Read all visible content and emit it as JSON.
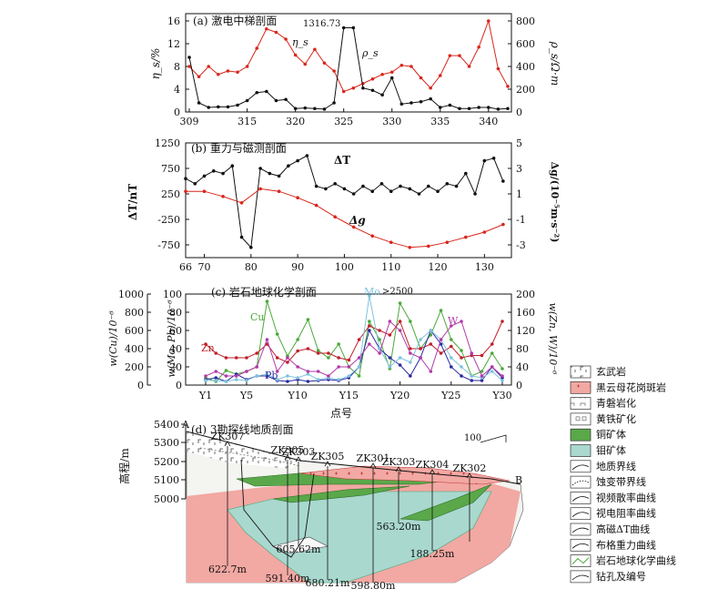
{
  "panel_a": {
    "title": "(a) 激电中梯剖面",
    "ylabel_left": "η_s/%",
    "ylabel_right": "ρ_s/Ω·m",
    "series_eta_label": "η_s",
    "series_rho_label": "ρ_s",
    "peak_label": "1316.73",
    "colors": {
      "eta": "#d9261c",
      "rho": "#111111"
    }
  },
  "panel_b": {
    "title": "(b) 重力与磁测剖面",
    "ylabel_left": "ΔT/nT",
    "ylabel_right": "Δg/(10⁻⁵m·s⁻²)",
    "series_dT_label": "ΔT",
    "series_dg_label": "Δg",
    "colors": {
      "dT": "#111111",
      "dg": "#d9261c"
    }
  },
  "panel_c": {
    "title": "(c) 岩石地球化学剖面",
    "ylabel_far_left": "w(Cu)/10⁻⁶",
    "ylabel_left": "w(Mo, Pb)/10⁻⁶",
    "ylabel_right": "w(Zn, W)/10⁻⁶",
    "annot": ">2500",
    "series_labels": {
      "cu": "Cu",
      "zn": "Zn",
      "pb": "Pb",
      "mo": "Mo",
      "w": "W"
    },
    "colors": {
      "cu": "#4aa83a",
      "zn": "#c0202a",
      "pb": "#2a2aa0",
      "mo": "#7fc3dd",
      "w": "#b23ba8"
    },
    "xlabel": "点号"
  },
  "panel_d": {
    "title": "(d) 3勘探线地质剖面",
    "ylabel": "高程/m",
    "end_a": "A",
    "end_b": "B",
    "scale_label": "100",
    "drillholes": [
      "ZK307",
      "ZK305",
      "ZK303",
      "ZK305",
      "ZK301",
      "ZK303",
      "ZK304",
      "ZK302"
    ],
    "depths": [
      "622.7m",
      "591.40m",
      "605.62m",
      "680.21m",
      "598.80m",
      "563.20m",
      "188.25m"
    ]
  },
  "legend": {
    "items": [
      {
        "label": "玄武岩",
        "kind": "basalt"
      },
      {
        "label": "黑云母花岗斑岩",
        "kind": "porphyry"
      },
      {
        "label": "青磐岩化",
        "kind": "propylitic"
      },
      {
        "label": "黄铁矿化",
        "kind": "pyrite"
      },
      {
        "label": "铜矿体",
        "kind": "cu-ore"
      },
      {
        "label": "钼矿体",
        "kind": "mo-ore"
      },
      {
        "label": "地质界线",
        "kind": "geo-boundary"
      },
      {
        "label": "蚀变带界线",
        "kind": "alteration-boundary"
      },
      {
        "label": "视频散率曲线",
        "kind": "eta-curve"
      },
      {
        "label": "视电阻率曲线",
        "kind": "rho-curve"
      },
      {
        "label": "高磁ΔT曲线",
        "kind": "mag-curve"
      },
      {
        "label": "布格重力曲线",
        "kind": "bouguer-curve"
      },
      {
        "label": "岩石地球化学曲线",
        "kind": "geochem-curve"
      },
      {
        "label": "钻孔及编号",
        "kind": "drillhole"
      }
    ],
    "colors": {
      "porphyry": "#f2a8a3",
      "cu": "#5aa84a",
      "mo": "#a9d8cf"
    }
  },
  "chart_data": [
    {
      "type": "line",
      "title": "(a) 激电中梯剖面",
      "xlim": [
        309,
        342
      ],
      "xticks": [
        309,
        315,
        320,
        325,
        330,
        335,
        340
      ],
      "ylim_left": [
        0,
        16
      ],
      "yticks_left": [
        0,
        4,
        8,
        12,
        16
      ],
      "ylim_right": [
        0,
        800
      ],
      "yticks_right": [
        0,
        200,
        400,
        600,
        800
      ],
      "series": [
        {
          "name": "η_s",
          "axis": "left",
          "x": [
            309,
            310,
            311,
            312,
            313,
            314,
            315,
            316,
            317,
            318,
            319,
            320,
            321,
            322,
            323,
            324,
            325,
            326,
            327,
            328,
            329,
            330,
            331,
            332,
            333,
            334,
            335,
            336,
            337,
            338,
            339,
            340,
            341,
            342
          ],
          "y": [
            8,
            6.2,
            8,
            6.6,
            7.2,
            7,
            8,
            11.2,
            14.6,
            14,
            12.8,
            10,
            8.4,
            11,
            8.6,
            7.2,
            3.6,
            4.2,
            5,
            5.8,
            6.6,
            7,
            8.2,
            8,
            6,
            4.2,
            6.4,
            9.9,
            9.9,
            8,
            11.4,
            16,
            7.6,
            4.5
          ]
        },
        {
          "name": "ρ_s",
          "axis": "right",
          "x": [
            309,
            310,
            311,
            312,
            313,
            314,
            315,
            316,
            317,
            318,
            319,
            320,
            321,
            322,
            323,
            324,
            325,
            326,
            327,
            328,
            329,
            330,
            331,
            332,
            333,
            334,
            335,
            336,
            337,
            338,
            339,
            340,
            341,
            342
          ],
          "y": [
            480,
            80,
            40,
            45,
            45,
            60,
            100,
            170,
            180,
            100,
            110,
            30,
            35,
            30,
            25,
            80,
            740,
            740,
            210,
            190,
            150,
            300,
            70,
            80,
            90,
            115,
            40,
            60,
            30,
            30,
            40,
            40,
            25,
            30
          ]
        }
      ],
      "annotations": [
        "1316.73"
      ]
    },
    {
      "type": "line",
      "title": "(b) 重力与磁测剖面",
      "xlim": [
        66,
        135
      ],
      "xticks": [
        66,
        70,
        80,
        90,
        100,
        110,
        120,
        130
      ],
      "ylim_left": [
        -1000,
        1250
      ],
      "yticks_left": [
        -750,
        -250,
        250,
        750,
        1250
      ],
      "ylim_right": [
        -4,
        5
      ],
      "yticks_right": [
        -3,
        -1,
        1,
        3,
        5
      ],
      "series": [
        {
          "name": "ΔT",
          "axis": "left",
          "x": [
            66,
            68,
            70,
            72,
            74,
            76,
            78,
            80,
            82,
            84,
            86,
            88,
            90,
            92,
            94,
            96,
            98,
            100,
            102,
            104,
            106,
            108,
            110,
            112,
            114,
            116,
            118,
            120,
            122,
            124,
            126,
            128,
            130,
            132,
            134
          ],
          "y": [
            550,
            450,
            600,
            700,
            650,
            800,
            -600,
            -800,
            750,
            650,
            600,
            800,
            900,
            1000,
            400,
            350,
            450,
            350,
            250,
            400,
            300,
            450,
            300,
            400,
            350,
            250,
            400,
            300,
            450,
            400,
            650,
            250,
            900,
            950,
            500
          ]
        },
        {
          "name": "Δg",
          "axis": "right",
          "x": [
            66,
            70,
            74,
            78,
            82,
            86,
            90,
            94,
            98,
            102,
            106,
            110,
            114,
            118,
            122,
            126,
            130,
            134
          ],
          "y": [
            1.2,
            1.2,
            0.8,
            0.3,
            1.4,
            1.2,
            0.7,
            0.1,
            -0.8,
            -1.6,
            -2.3,
            -2.8,
            -3.2,
            -3.1,
            -2.8,
            -2.4,
            -2.0,
            -1.4
          ]
        }
      ]
    },
    {
      "type": "line",
      "title": "(c) 岩石地球化学剖面",
      "xlim": [
        1,
        30
      ],
      "xticks": [
        "Y1",
        "Y5",
        "Y10",
        "Y15",
        "Y20",
        "Y25",
        "Y30"
      ],
      "xlabel": "点号",
      "ylim_cu": [
        0,
        1000
      ],
      "yticks_cu": [
        0,
        200,
        400,
        600,
        800,
        1000
      ],
      "ylim_mo_pb": [
        0,
        100
      ],
      "yticks_mo_pb": [
        0,
        20,
        40,
        60,
        80,
        100
      ],
      "ylim_zn_w": [
        0,
        200
      ],
      "yticks_zn_w": [
        0,
        40,
        80,
        120,
        160,
        200
      ],
      "series": [
        {
          "name": "Cu",
          "axis": "cu",
          "x": [
            1,
            2,
            3,
            4,
            5,
            6,
            7,
            8,
            9,
            10,
            11,
            12,
            13,
            14,
            15,
            16,
            17,
            18,
            19,
            20,
            21,
            22,
            23,
            24,
            25,
            26,
            27,
            28,
            29,
            30
          ],
          "y": [
            80,
            40,
            160,
            120,
            150,
            200,
            920,
            560,
            320,
            500,
            720,
            380,
            300,
            450,
            200,
            100,
            700,
            500,
            180,
            900,
            700,
            400,
            550,
            820,
            500,
            380,
            100,
            150,
            350,
            180
          ]
        },
        {
          "name": "Zn",
          "axis": "zn_w",
          "x": [
            1,
            2,
            3,
            4,
            5,
            6,
            7,
            8,
            9,
            10,
            11,
            12,
            13,
            14,
            15,
            16,
            17,
            18,
            19,
            20,
            21,
            22,
            23,
            24,
            25,
            26,
            27,
            28,
            29,
            30
          ],
          "y": [
            90,
            70,
            60,
            60,
            60,
            70,
            90,
            60,
            50,
            75,
            80,
            70,
            70,
            60,
            55,
            100,
            130,
            120,
            110,
            140,
            80,
            80,
            90,
            70,
            85,
            60,
            65,
            65,
            90,
            140
          ]
        },
        {
          "name": "Pb",
          "axis": "mo_pb",
          "x": [
            1,
            2,
            3,
            4,
            5,
            6,
            7,
            8,
            9,
            10,
            11,
            12,
            13,
            14,
            15,
            16,
            17,
            18,
            19,
            20,
            21,
            22,
            23,
            24,
            25,
            26,
            27,
            28,
            29,
            30
          ],
          "y": [
            6,
            8,
            4,
            12,
            6,
            10,
            10,
            5,
            4,
            6,
            4,
            5,
            6,
            5,
            8,
            20,
            60,
            40,
            30,
            22,
            10,
            30,
            60,
            45,
            20,
            10,
            5,
            5,
            20,
            8
          ]
        },
        {
          "name": "Mo",
          "axis": "mo_pb",
          "x": [
            1,
            2,
            3,
            4,
            5,
            6,
            7,
            8,
            9,
            10,
            11,
            12,
            13,
            14,
            15,
            16,
            17,
            18,
            19,
            20,
            21,
            22,
            23,
            24,
            25,
            26,
            27,
            28,
            29,
            30
          ],
          "y": [
            5,
            5,
            4,
            6,
            5,
            10,
            12,
            6,
            10,
            8,
            12,
            6,
            8,
            6,
            10,
            20,
            98,
            40,
            20,
            30,
            25,
            50,
            60,
            50,
            30,
            20,
            10,
            8,
            15,
            5
          ]
        },
        {
          "name": "W",
          "axis": "zn_w",
          "x": [
            1,
            2,
            3,
            4,
            5,
            6,
            7,
            8,
            9,
            10,
            11,
            12,
            13,
            14,
            15,
            16,
            17,
            18,
            19,
            20,
            21,
            22,
            23,
            24,
            25,
            26,
            27,
            28,
            29,
            30
          ],
          "y": [
            20,
            30,
            20,
            20,
            30,
            40,
            100,
            30,
            60,
            40,
            30,
            30,
            20,
            40,
            40,
            60,
            90,
            70,
            140,
            120,
            70,
            60,
            30,
            100,
            130,
            140,
            70,
            20,
            40,
            20
          ]
        }
      ],
      "annotations": [
        ">2500"
      ]
    }
  ]
}
